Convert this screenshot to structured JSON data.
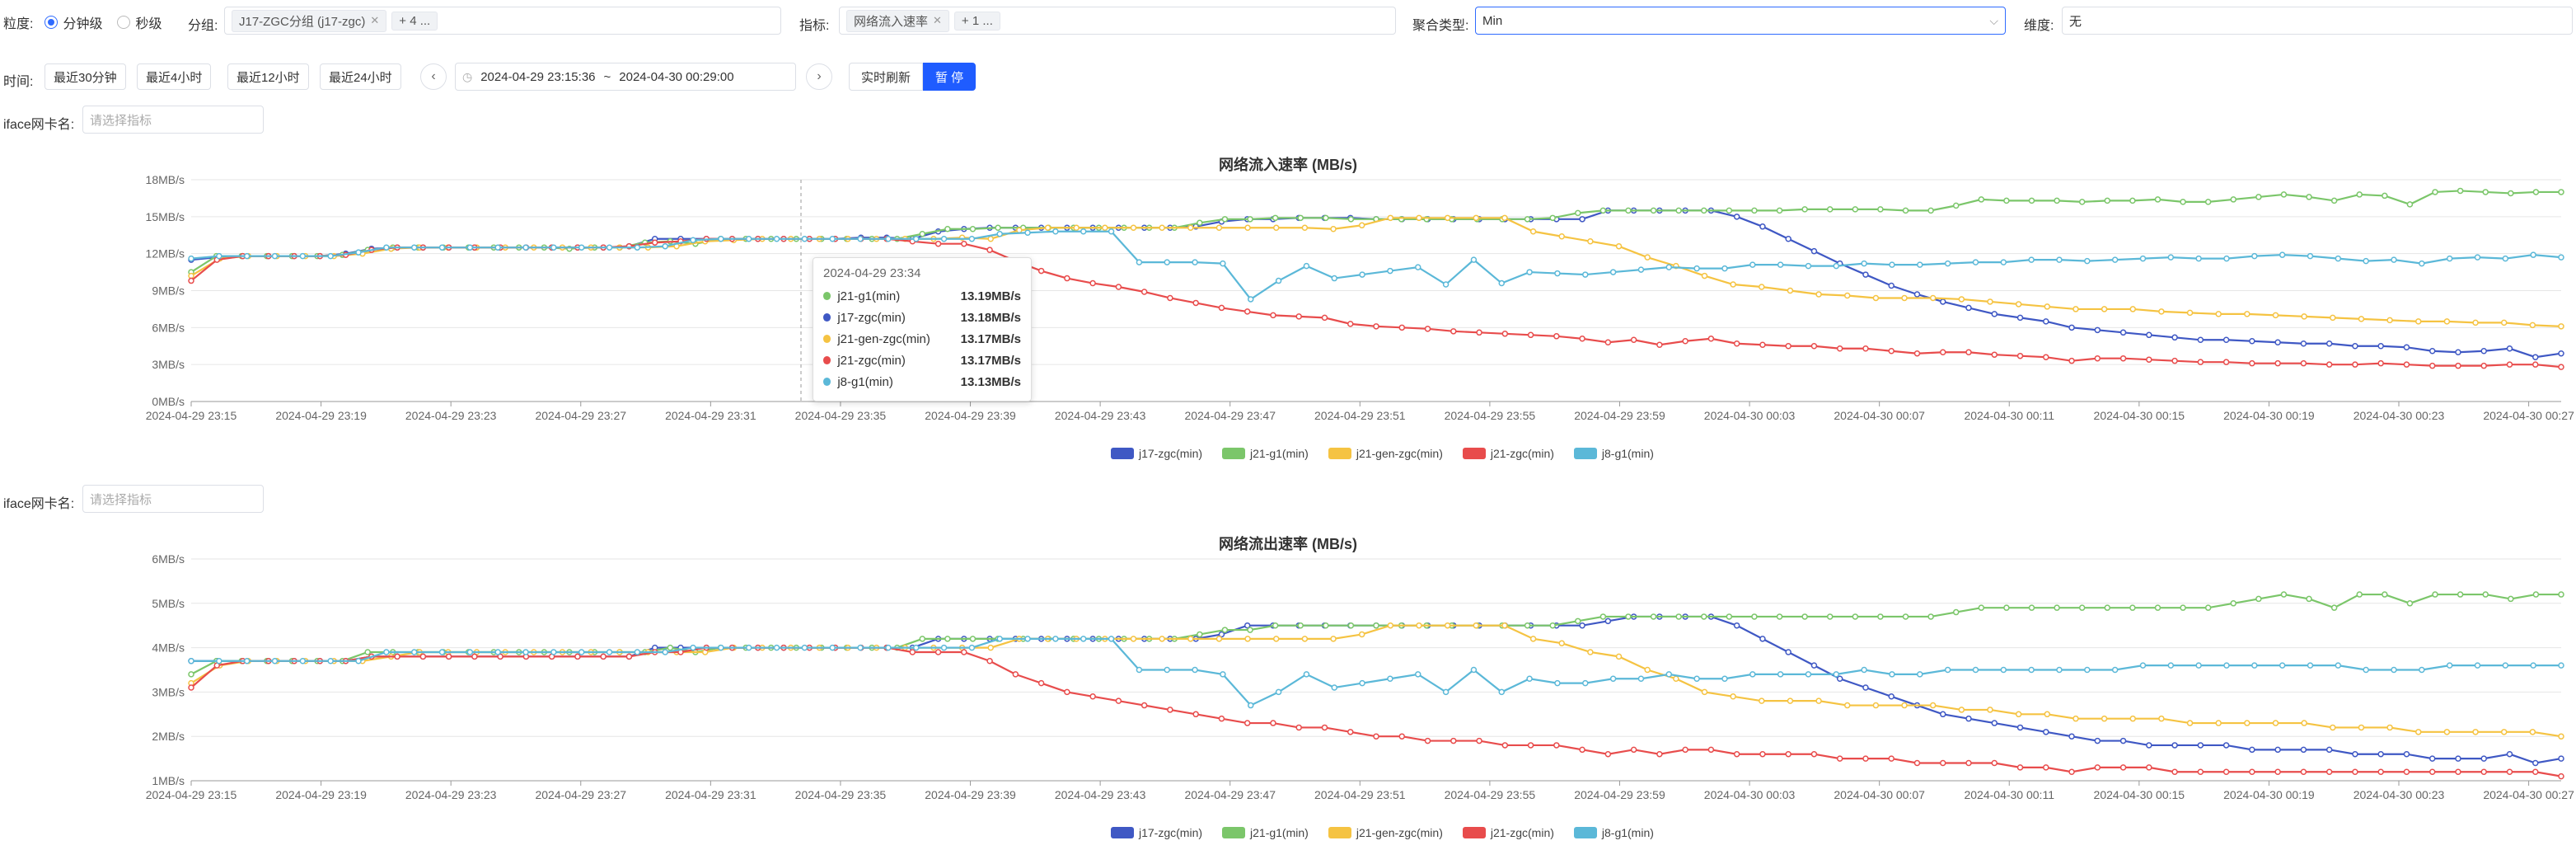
{
  "filters": {
    "granularity_label": "粒度:",
    "granularity_options": [
      "分钟级",
      "秒级"
    ],
    "group_label": "分组:",
    "group_tag": "J17-ZGC分组 (j17-zgc)",
    "group_more": "+ 4 ...",
    "metric_label": "指标:",
    "metric_tag": "网络流入速率",
    "metric_more": "+ 1 ...",
    "agg_label": "聚合类型:",
    "agg_value": "Min",
    "dim_label": "维度:",
    "dim_value": "无"
  },
  "time": {
    "label": "时间:",
    "quick": [
      "最近30分钟",
      "最近4小时",
      "最近12小时",
      "最近24小时"
    ],
    "start": "2024-04-29 23:15:36",
    "sep": "~",
    "end": "2024-04-30 00:29:00",
    "realtime": "实时刷新",
    "pause": "暂 停"
  },
  "iface": {
    "label": "iface网卡名:",
    "placeholder": "请选择指标"
  },
  "colors": {
    "j17": "#3f58c4",
    "j21g1": "#7bc66a",
    "j21gen": "#f5c342",
    "j21zgc": "#e84c4c",
    "j8": "#5bb8d8"
  },
  "legend": [
    "j17-zgc(min)",
    "j21-g1(min)",
    "j21-gen-zgc(min)",
    "j21-zgc(min)",
    "j8-g1(min)"
  ],
  "tooltip": {
    "title": "2024-04-29 23:34",
    "rows": [
      {
        "name": "j21-g1(min)",
        "value": "13.19MB/s",
        "color": "#7bc66a"
      },
      {
        "name": "j17-zgc(min)",
        "value": "13.18MB/s",
        "color": "#3f58c4"
      },
      {
        "name": "j21-gen-zgc(min)",
        "value": "13.17MB/s",
        "color": "#f5c342"
      },
      {
        "name": "j21-zgc(min)",
        "value": "13.17MB/s",
        "color": "#e84c4c"
      },
      {
        "name": "j8-g1(min)",
        "value": "13.13MB/s",
        "color": "#5bb8d8"
      }
    ]
  },
  "chart_data": [
    {
      "type": "line",
      "title": "网络流入速率 (MB/s)",
      "yticks": [
        "0MB/s",
        "3MB/s",
        "6MB/s",
        "9MB/s",
        "12MB/s",
        "15MB/s",
        "18MB/s"
      ],
      "ylim": [
        0,
        18
      ],
      "xticks": [
        "2024-04-29 23:15",
        "2024-04-29 23:19",
        "2024-04-29 23:23",
        "2024-04-29 23:27",
        "2024-04-29 23:31",
        "2024-04-29 23:35",
        "2024-04-29 23:39",
        "2024-04-29 23:43",
        "2024-04-29 23:47",
        "2024-04-29 23:51",
        "2024-04-29 23:55",
        "2024-04-29 23:59",
        "2024-04-30 00:03",
        "2024-04-30 00:07",
        "2024-04-30 00:11",
        "2024-04-30 00:15",
        "2024-04-30 00:19",
        "2024-04-30 00:23",
        "2024-04-30 00:27"
      ],
      "legend_position": "bottom",
      "series": [
        {
          "name": "j17-zgc(min)",
          "values": [
            11.5,
            11.7,
            11.8,
            11.8,
            11.8,
            11.8,
            12.0,
            12.4,
            12.5,
            12.5,
            12.5,
            12.5,
            12.5,
            12.5,
            12.5,
            12.5,
            12.5,
            12.6,
            13.2,
            13.2,
            13.2,
            13.2,
            13.2,
            13.2,
            13.2,
            13.2,
            13.3,
            13.3,
            13.2,
            13.8,
            14.0,
            14.1,
            14.1,
            14.1,
            14.1,
            14.1,
            14.1,
            14.1,
            14.1,
            14.2,
            14.6,
            14.8,
            14.8,
            14.9,
            14.9,
            14.9,
            14.8,
            14.8,
            14.8,
            14.8,
            14.8,
            14.8,
            14.8,
            14.8,
            14.8,
            15.5,
            15.5,
            15.5,
            15.5,
            15.5,
            15.0,
            14.2,
            13.2,
            12.2,
            11.2,
            10.3,
            9.4,
            8.7,
            8.1,
            7.6,
            7.1,
            6.8,
            6.5,
            6.0,
            5.8,
            5.6,
            5.4,
            5.2,
            5.0,
            5.0,
            4.9,
            4.8,
            4.7,
            4.7,
            4.5,
            4.5,
            4.4,
            4.1,
            4.0,
            4.1,
            4.3,
            3.6,
            3.9
          ]
        },
        {
          "name": "j21-g1(min)",
          "values": [
            10.5,
            11.8,
            11.8,
            11.8,
            11.8,
            11.8,
            11.9,
            12.3,
            12.5,
            12.5,
            12.5,
            12.5,
            12.5,
            12.5,
            12.5,
            12.4,
            12.5,
            12.5,
            12.9,
            13.0,
            12.8,
            13.2,
            13.2,
            13.2,
            13.2,
            13.2,
            13.2,
            13.2,
            13.2,
            13.6,
            14.0,
            14.0,
            14.1,
            14.1,
            14.1,
            14.1,
            14.1,
            14.1,
            14.1,
            14.1,
            14.5,
            14.8,
            14.8,
            14.9,
            14.9,
            14.9,
            14.8,
            14.8,
            14.8,
            14.8,
            14.8,
            14.8,
            14.8,
            14.8,
            14.9,
            15.3,
            15.5,
            15.5,
            15.5,
            15.5,
            15.5,
            15.5,
            15.5,
            15.5,
            15.6,
            15.6,
            15.6,
            15.6,
            15.5,
            15.5,
            15.9,
            16.4,
            16.3,
            16.3,
            16.3,
            16.2,
            16.3,
            16.3,
            16.4,
            16.2,
            16.2,
            16.4,
            16.6,
            16.8,
            16.6,
            16.3,
            16.8,
            16.7,
            16.0,
            17.0,
            17.1,
            17.0,
            16.9,
            17.0,
            17.0
          ]
        },
        {
          "name": "j21-gen-zgc(min)",
          "values": [
            10.2,
            11.6,
            11.8,
            11.8,
            11.8,
            11.8,
            12.0,
            12.4,
            12.5,
            12.5,
            12.5,
            12.5,
            12.5,
            12.5,
            12.5,
            12.5,
            12.5,
            12.6,
            13.0,
            13.1,
            13.2,
            13.2,
            13.2,
            13.2,
            13.2,
            13.2,
            13.2,
            13.3,
            13.2,
            13.9,
            14.1,
            14.1,
            14.1,
            14.1,
            14.1,
            14.1,
            14.1,
            14.1,
            14.1,
            14.1,
            14.0,
            14.3,
            14.9,
            14.9,
            14.9,
            14.9,
            14.9,
            13.8,
            13.4,
            13.0,
            12.6,
            11.7,
            11.0,
            10.2,
            9.5,
            9.3,
            9.0,
            8.7,
            8.6,
            8.4,
            8.4,
            8.4,
            8.3,
            8.1,
            7.9,
            7.7,
            7.5,
            7.5,
            7.5,
            7.3,
            7.2,
            7.1,
            7.1,
            7.0,
            6.9,
            6.8,
            6.7,
            6.6,
            6.5,
            6.5,
            6.4,
            6.4,
            6.2,
            6.1
          ]
        },
        {
          "name": "j21-zgc(min)",
          "values": [
            9.8,
            11.5,
            11.8,
            11.8,
            11.8,
            11.8,
            11.9,
            12.3,
            12.5,
            12.5,
            12.5,
            12.5,
            12.5,
            12.5,
            12.5,
            12.5,
            12.5,
            12.6,
            12.9,
            13.0,
            13.2,
            13.2,
            13.2,
            13.2,
            13.2,
            13.2,
            13.2,
            13.2,
            13.0,
            12.8,
            12.8,
            12.3,
            11.4,
            10.6,
            10.0,
            9.6,
            9.3,
            8.9,
            8.4,
            8.0,
            7.6,
            7.3,
            7.0,
            6.9,
            6.8,
            6.3,
            6.1,
            6.0,
            5.9,
            5.7,
            5.6,
            5.5,
            5.4,
            5.3,
            5.1,
            4.8,
            5.0,
            4.6,
            4.9,
            5.1,
            4.7,
            4.6,
            4.5,
            4.5,
            4.3,
            4.3,
            4.1,
            3.9,
            4.0,
            4.0,
            3.8,
            3.7,
            3.6,
            3.3,
            3.5,
            3.5,
            3.4,
            3.3,
            3.2,
            3.2,
            3.1,
            3.1,
            3.1,
            3.0,
            3.0,
            3.1,
            3.0,
            2.9,
            2.9,
            2.9,
            3.0,
            3.0,
            2.8
          ]
        },
        {
          "name": "j8-g1(min)",
          "values": [
            11.6,
            11.8,
            11.8,
            11.8,
            11.8,
            11.8,
            12.1,
            12.5,
            12.5,
            12.5,
            12.5,
            12.5,
            12.5,
            12.5,
            12.5,
            12.5,
            12.5,
            12.6,
            13.1,
            13.2,
            13.2,
            13.2,
            13.2,
            13.2,
            13.2,
            13.2,
            13.2,
            13.2,
            13.2,
            13.6,
            13.7,
            13.8,
            13.8,
            13.8,
            11.3,
            11.3,
            11.3,
            11.2,
            8.3,
            9.8,
            11.0,
            10.0,
            10.3,
            10.6,
            10.9,
            9.5,
            11.5,
            9.6,
            10.5,
            10.4,
            10.3,
            10.5,
            10.7,
            10.9,
            10.8,
            10.8,
            11.1,
            11.1,
            11.0,
            11.0,
            11.2,
            11.1,
            11.1,
            11.2,
            11.3,
            11.3,
            11.5,
            11.5,
            11.4,
            11.5,
            11.6,
            11.7,
            11.6,
            11.6,
            11.8,
            11.9,
            11.8,
            11.6,
            11.4,
            11.5,
            11.2,
            11.6,
            11.7,
            11.6,
            11.9,
            11.7
          ]
        }
      ]
    },
    {
      "type": "line",
      "title": "网络流出速率 (MB/s)",
      "yticks": [
        "1MB/s",
        "2MB/s",
        "3MB/s",
        "4MB/s",
        "5MB/s",
        "6MB/s"
      ],
      "ylim": [
        1,
        6
      ],
      "xticks": [
        "2024-04-29 23:15",
        "2024-04-29 23:19",
        "2024-04-29 23:23",
        "2024-04-29 23:27",
        "2024-04-29 23:31",
        "2024-04-29 23:35",
        "2024-04-29 23:39",
        "2024-04-29 23:43",
        "2024-04-29 23:47",
        "2024-04-29 23:51",
        "2024-04-29 23:55",
        "2024-04-29 23:59",
        "2024-04-30 00:03",
        "2024-04-30 00:07",
        "2024-04-30 00:11",
        "2024-04-30 00:15",
        "2024-04-30 00:19",
        "2024-04-30 00:23",
        "2024-04-30 00:27"
      ],
      "legend_position": "bottom",
      "series": [
        {
          "name": "j17-zgc(min)",
          "values": [
            3.7,
            3.7,
            3.7,
            3.7,
            3.7,
            3.7,
            3.7,
            3.8,
            3.8,
            3.8,
            3.8,
            3.8,
            3.8,
            3.8,
            3.8,
            3.8,
            3.8,
            3.8,
            4.0,
            4.0,
            4.0,
            4.0,
            4.0,
            4.0,
            4.0,
            4.0,
            4.0,
            4.0,
            4.0,
            4.2,
            4.2,
            4.2,
            4.2,
            4.2,
            4.2,
            4.2,
            4.2,
            4.2,
            4.2,
            4.2,
            4.3,
            4.5,
            4.5,
            4.5,
            4.5,
            4.5,
            4.5,
            4.5,
            4.5,
            4.5,
            4.5,
            4.5,
            4.5,
            4.5,
            4.5,
            4.6,
            4.7,
            4.7,
            4.7,
            4.7,
            4.5,
            4.2,
            3.9,
            3.6,
            3.3,
            3.1,
            2.9,
            2.7,
            2.5,
            2.4,
            2.3,
            2.2,
            2.1,
            2.0,
            1.9,
            1.9,
            1.8,
            1.8,
            1.8,
            1.8,
            1.7,
            1.7,
            1.7,
            1.7,
            1.6,
            1.6,
            1.6,
            1.5,
            1.5,
            1.5,
            1.6,
            1.4,
            1.5
          ]
        },
        {
          "name": "j21-g1(min)",
          "values": [
            3.4,
            3.7,
            3.7,
            3.7,
            3.7,
            3.7,
            3.7,
            3.9,
            3.9,
            3.9,
            3.9,
            3.9,
            3.9,
            3.9,
            3.9,
            3.9,
            3.9,
            3.9,
            3.9,
            4.0,
            3.9,
            4.0,
            4.0,
            4.0,
            4.0,
            4.0,
            4.0,
            4.0,
            4.0,
            4.2,
            4.2,
            4.2,
            4.2,
            4.2,
            4.2,
            4.2,
            4.2,
            4.2,
            4.2,
            4.2,
            4.3,
            4.4,
            4.4,
            4.5,
            4.5,
            4.5,
            4.5,
            4.5,
            4.5,
            4.5,
            4.5,
            4.5,
            4.5,
            4.5,
            4.5,
            4.6,
            4.7,
            4.7,
            4.7,
            4.7,
            4.7,
            4.7,
            4.7,
            4.7,
            4.7,
            4.7,
            4.7,
            4.7,
            4.7,
            4.7,
            4.8,
            4.9,
            4.9,
            4.9,
            4.9,
            4.9,
            4.9,
            4.9,
            4.9,
            4.9,
            4.9,
            5.0,
            5.1,
            5.2,
            5.1,
            4.9,
            5.2,
            5.2,
            5.0,
            5.2,
            5.2,
            5.2,
            5.1,
            5.2,
            5.2
          ]
        },
        {
          "name": "j21-gen-zgc(min)",
          "values": [
            3.2,
            3.6,
            3.7,
            3.7,
            3.7,
            3.7,
            3.7,
            3.8,
            3.9,
            3.9,
            3.9,
            3.9,
            3.9,
            3.9,
            3.9,
            3.9,
            3.9,
            3.9,
            3.9,
            4.0,
            4.0,
            4.0,
            4.0,
            4.0,
            4.0,
            4.0,
            4.0,
            4.0,
            4.0,
            4.2,
            4.2,
            4.2,
            4.2,
            4.2,
            4.2,
            4.2,
            4.2,
            4.2,
            4.2,
            4.2,
            4.2,
            4.3,
            4.5,
            4.5,
            4.5,
            4.5,
            4.5,
            4.2,
            4.1,
            3.9,
            3.8,
            3.5,
            3.3,
            3.0,
            2.9,
            2.8,
            2.8,
            2.8,
            2.7,
            2.7,
            2.7,
            2.7,
            2.6,
            2.6,
            2.5,
            2.5,
            2.4,
            2.4,
            2.4,
            2.4,
            2.3,
            2.3,
            2.3,
            2.3,
            2.3,
            2.2,
            2.2,
            2.2,
            2.1,
            2.1,
            2.1,
            2.1,
            2.1,
            2.0
          ]
        },
        {
          "name": "j21-zgc(min)",
          "values": [
            3.1,
            3.6,
            3.7,
            3.7,
            3.7,
            3.7,
            3.7,
            3.8,
            3.8,
            3.8,
            3.8,
            3.8,
            3.8,
            3.8,
            3.8,
            3.8,
            3.8,
            3.8,
            3.9,
            3.9,
            4.0,
            4.0,
            4.0,
            4.0,
            4.0,
            4.0,
            4.0,
            4.0,
            3.9,
            3.9,
            3.9,
            3.7,
            3.4,
            3.2,
            3.0,
            2.9,
            2.8,
            2.7,
            2.6,
            2.5,
            2.4,
            2.3,
            2.3,
            2.2,
            2.2,
            2.1,
            2.0,
            2.0,
            1.9,
            1.9,
            1.9,
            1.8,
            1.8,
            1.8,
            1.7,
            1.6,
            1.7,
            1.6,
            1.7,
            1.7,
            1.6,
            1.6,
            1.6,
            1.6,
            1.5,
            1.5,
            1.5,
            1.4,
            1.4,
            1.4,
            1.4,
            1.3,
            1.3,
            1.2,
            1.3,
            1.3,
            1.3,
            1.2,
            1.2,
            1.2,
            1.2,
            1.2,
            1.2,
            1.2,
            1.2,
            1.2,
            1.2,
            1.2,
            1.2,
            1.2,
            1.2,
            1.2,
            1.1
          ]
        },
        {
          "name": "j8-g1(min)",
          "values": [
            3.7,
            3.7,
            3.7,
            3.7,
            3.7,
            3.7,
            3.7,
            3.9,
            3.9,
            3.9,
            3.9,
            3.9,
            3.9,
            3.9,
            3.9,
            3.9,
            3.9,
            3.9,
            4.0,
            4.0,
            4.0,
            4.0,
            4.0,
            4.0,
            4.0,
            4.0,
            4.0,
            4.0,
            4.0,
            4.2,
            4.2,
            4.2,
            4.2,
            4.2,
            3.5,
            3.5,
            3.5,
            3.4,
            2.7,
            3.0,
            3.4,
            3.1,
            3.2,
            3.3,
            3.4,
            3.0,
            3.5,
            3.0,
            3.3,
            3.2,
            3.2,
            3.3,
            3.3,
            3.4,
            3.3,
            3.3,
            3.4,
            3.4,
            3.4,
            3.4,
            3.5,
            3.4,
            3.4,
            3.5,
            3.5,
            3.5,
            3.5,
            3.5,
            3.5,
            3.5,
            3.6,
            3.6,
            3.6,
            3.6,
            3.6,
            3.6,
            3.6,
            3.6,
            3.5,
            3.5,
            3.5,
            3.6,
            3.6,
            3.6,
            3.6,
            3.6
          ]
        }
      ]
    }
  ]
}
